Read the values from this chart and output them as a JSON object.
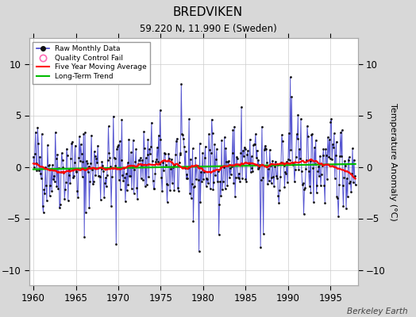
{
  "title": "BREDVIKEN",
  "subtitle": "59.220 N, 11.990 E (Sweden)",
  "ylabel": "Temperature Anomaly (°C)",
  "attribution": "Berkeley Earth",
  "xlim": [
    1959.5,
    1998.2
  ],
  "ylim": [
    -11.5,
    12.5
  ],
  "yticks": [
    -10,
    -5,
    0,
    5,
    10
  ],
  "xticks": [
    1960,
    1965,
    1970,
    1975,
    1980,
    1985,
    1990,
    1995
  ],
  "bg_color": "#d8d8d8",
  "plot_bg_color": "#ffffff",
  "raw_line_color": "#4444cc",
  "raw_dot_color": "#111111",
  "qc_color": "#ff69b4",
  "moving_avg_color": "#ff0000",
  "trend_color": "#00bb00",
  "seed": 42
}
